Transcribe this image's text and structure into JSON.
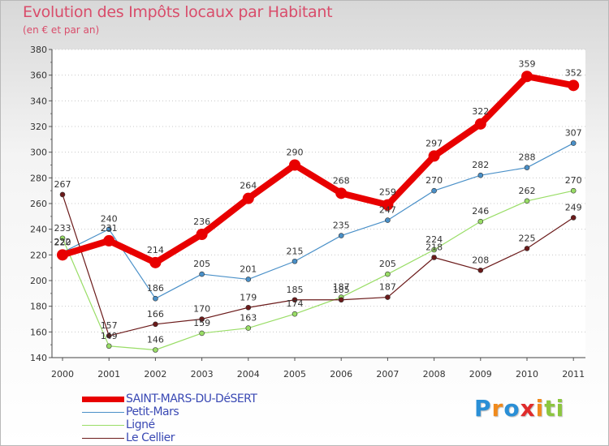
{
  "title": "Evolution des Impôts locaux par Habitant",
  "subtitle": "(en € et par an)",
  "logo": {
    "text": "Proxiti",
    "letter_colors": [
      "#2a8fd6",
      "#f08a1c",
      "#2a8fd6",
      "#e02b2b",
      "#f08a1c",
      "#8cc63f",
      "#8cc63f"
    ]
  },
  "chart_data": {
    "type": "line",
    "title": "Evolution des Impôts locaux par Habitant",
    "subtitle": "(en € et par an)",
    "xlabel": "",
    "ylabel": "",
    "x": [
      "2000",
      "2001",
      "2002",
      "2003",
      "2004",
      "2005",
      "2006",
      "2007",
      "2008",
      "2009",
      "2010",
      "2011"
    ],
    "ylim": [
      140,
      380
    ],
    "yticks": [
      "140",
      "160",
      "180",
      "200",
      "220",
      "240",
      "260",
      "280",
      "300",
      "320",
      "340",
      "360",
      "380"
    ],
    "grid": "horizontal-dotted",
    "legend_position": "bottom-left",
    "series": [
      {
        "name": "SAINT-MARS-DU-DéSERT",
        "color": "#e80000",
        "values": [
          220,
          231,
          214,
          236,
          264,
          290,
          268,
          259,
          297,
          322,
          359,
          352
        ],
        "labels": [
          "220",
          "231",
          "214",
          "236",
          "264",
          "290",
          "268",
          "259",
          "297",
          "322",
          "359",
          "352"
        ]
      },
      {
        "name": "Petit-Mars",
        "color": "#4a90c8",
        "values": [
          222,
          240,
          186,
          205,
          201,
          215,
          235,
          247,
          270,
          282,
          288,
          307
        ],
        "labels": [
          "222",
          "240",
          "186",
          "205",
          "201",
          "215",
          "235",
          "247",
          "270",
          "282",
          "288",
          "307"
        ]
      },
      {
        "name": "Ligné",
        "color": "#99dd66",
        "values": [
          233,
          149,
          146,
          159,
          163,
          174,
          187,
          205,
          224,
          246,
          262,
          270
        ],
        "labels": [
          "233",
          "149",
          "146",
          "159",
          "163",
          "174",
          "187",
          "205",
          "224",
          "246",
          "262",
          "270"
        ]
      },
      {
        "name": "Le Cellier",
        "color": "#6b1a1a",
        "values": [
          267,
          157,
          166,
          170,
          179,
          185,
          185,
          187,
          218,
          208,
          225,
          249
        ],
        "labels": [
          "267",
          "157",
          "166",
          "170",
          "179",
          "185",
          "185",
          "187",
          "218",
          "208",
          "225",
          "249"
        ]
      }
    ]
  }
}
